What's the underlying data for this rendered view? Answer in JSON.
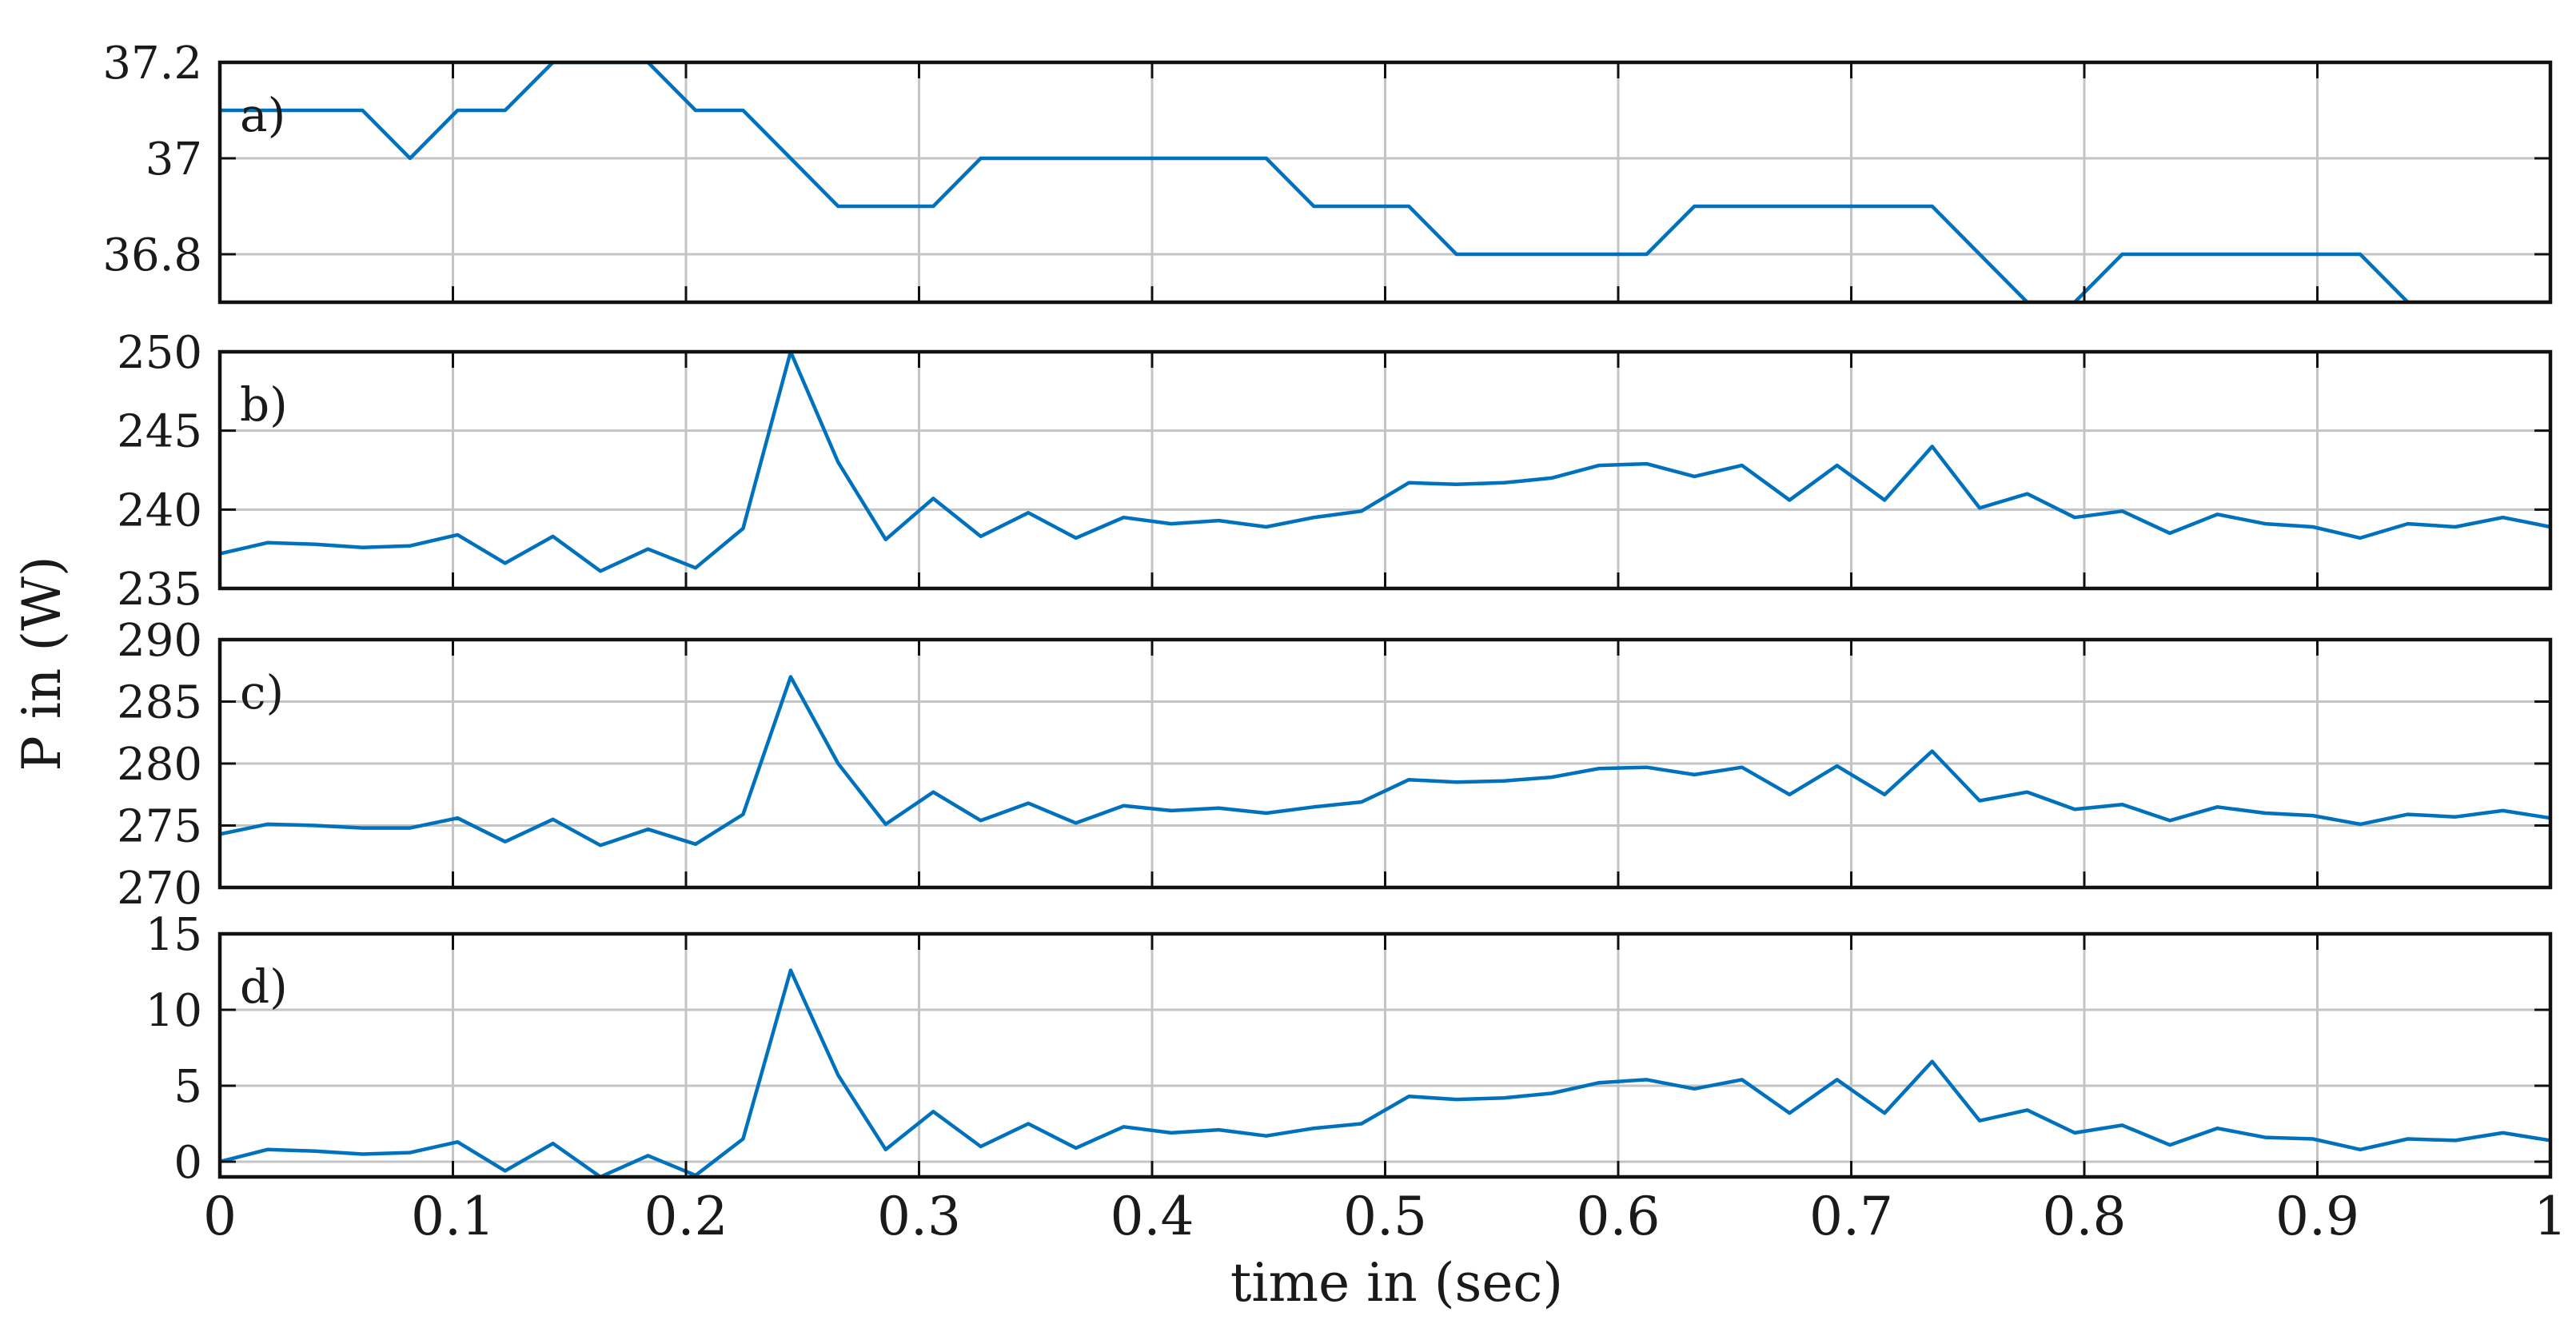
{
  "chart_data": {
    "type": "line",
    "ylabel": "P in (W)",
    "xlabel": "time in (sec)",
    "xlim": [
      0,
      1
    ],
    "x_ticks": [
      0,
      0.1,
      0.2,
      0.3,
      0.4,
      0.5,
      0.6,
      0.7,
      0.8,
      0.9,
      1
    ],
    "x_tick_labels": [
      "0",
      "0.1",
      "0.2",
      "0.3",
      "0.4",
      "0.5",
      "0.6",
      "0.7",
      "0.8",
      "0.9",
      "1"
    ],
    "grid": true,
    "line_color": "#0072BD",
    "x": [
      0,
      0.0204,
      0.0408,
      0.0612,
      0.0816,
      0.102,
      0.1224,
      0.1429,
      0.1633,
      0.1837,
      0.2041,
      0.2245,
      0.2449,
      0.2653,
      0.2857,
      0.3061,
      0.3265,
      0.3469,
      0.3673,
      0.3878,
      0.4082,
      0.4286,
      0.449,
      0.4694,
      0.4898,
      0.5102,
      0.5306,
      0.551,
      0.5714,
      0.5918,
      0.6122,
      0.6327,
      0.6531,
      0.6735,
      0.6939,
      0.7143,
      0.7347,
      0.7551,
      0.7755,
      0.7959,
      0.8163,
      0.8367,
      0.8571,
      0.8776,
      0.898,
      0.9184,
      0.9388,
      0.9592,
      0.9796,
      1.0
    ],
    "panels": [
      {
        "label": "a)",
        "ylim": [
          36.7,
          37.2
        ],
        "y_ticks": [
          36.8,
          37.0,
          37.2
        ],
        "y_tick_labels": [
          "36.8",
          "37",
          "37.2"
        ],
        "values": [
          37.1,
          37.1,
          37.1,
          37.1,
          37.0,
          37.1,
          37.1,
          37.2,
          37.2,
          37.2,
          37.1,
          37.1,
          37.0,
          36.9,
          36.9,
          36.9,
          37.0,
          37.0,
          37.0,
          37.0,
          37.0,
          37.0,
          37.0,
          36.9,
          36.9,
          36.9,
          36.8,
          36.8,
          36.8,
          36.8,
          36.8,
          36.9,
          36.9,
          36.9,
          36.9,
          36.9,
          36.9,
          36.8,
          36.7,
          36.7,
          36.8,
          36.8,
          36.8,
          36.8,
          36.8,
          36.8,
          36.7,
          36.7,
          36.7,
          36.7
        ]
      },
      {
        "label": "b)",
        "ylim": [
          235,
          250
        ],
        "y_ticks": [
          235,
          240,
          245,
          250
        ],
        "y_tick_labels": [
          "235",
          "240",
          "245",
          "250"
        ],
        "values": [
          237.2,
          237.9,
          237.8,
          237.6,
          237.7,
          238.4,
          236.6,
          238.3,
          236.1,
          237.5,
          236.3,
          238.8,
          250.0,
          243.0,
          238.1,
          240.7,
          238.3,
          239.8,
          238.2,
          239.5,
          239.1,
          239.3,
          238.9,
          239.5,
          239.9,
          241.7,
          241.6,
          241.7,
          242.0,
          242.8,
          242.9,
          242.1,
          242.8,
          240.6,
          242.8,
          240.6,
          244.0,
          240.1,
          241.0,
          239.5,
          239.9,
          238.5,
          239.7,
          239.1,
          238.9,
          238.2,
          239.1,
          238.9,
          239.5,
          238.9
        ]
      },
      {
        "label": "c)",
        "ylim": [
          270,
          290
        ],
        "y_ticks": [
          270,
          275,
          280,
          285,
          290
        ],
        "y_tick_labels": [
          "270",
          "275",
          "280",
          "285",
          "290"
        ],
        "values": [
          274.3,
          275.1,
          275.0,
          274.8,
          274.8,
          275.6,
          273.7,
          275.5,
          273.4,
          274.7,
          273.5,
          275.9,
          287.0,
          280.0,
          275.1,
          277.7,
          275.4,
          276.8,
          275.2,
          276.6,
          276.2,
          276.4,
          276.0,
          276.5,
          276.9,
          278.7,
          278.5,
          278.6,
          278.9,
          279.6,
          279.7,
          279.1,
          279.7,
          277.5,
          279.8,
          277.5,
          281.0,
          277.0,
          277.7,
          276.3,
          276.7,
          275.4,
          276.5,
          276.0,
          275.8,
          275.1,
          275.9,
          275.7,
          276.2,
          275.6
        ]
      },
      {
        "label": "d)",
        "ylim": [
          -1,
          15
        ],
        "y_ticks": [
          0,
          5,
          10,
          15
        ],
        "y_tick_labels": [
          "0",
          "5",
          "10",
          "15"
        ],
        "values": [
          0.0,
          0.8,
          0.7,
          0.5,
          0.6,
          1.3,
          -0.6,
          1.2,
          -1.0,
          0.4,
          -0.9,
          1.5,
          12.6,
          5.7,
          0.8,
          3.3,
          1.0,
          2.5,
          0.9,
          2.3,
          1.9,
          2.1,
          1.7,
          2.2,
          2.5,
          4.3,
          4.1,
          4.2,
          4.5,
          5.2,
          5.4,
          4.8,
          5.4,
          3.2,
          5.4,
          3.2,
          6.6,
          2.7,
          3.4,
          1.9,
          2.4,
          1.1,
          2.2,
          1.6,
          1.5,
          0.8,
          1.5,
          1.4,
          1.9,
          1.4
        ]
      }
    ]
  }
}
